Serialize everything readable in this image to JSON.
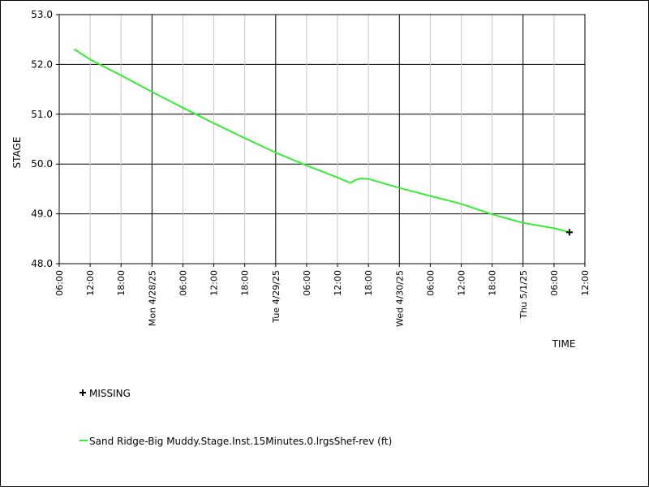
{
  "chart_data": {
    "type": "line",
    "ylabel": "STAGE",
    "xlabel": "TIME",
    "ylim": [
      48.0,
      53.0
    ],
    "y_ticks": [
      "48.0",
      "49.0",
      "50.0",
      "51.0",
      "52.0",
      "53.0"
    ],
    "x_range": [
      "2025-04-27T06:00",
      "2025-05-01T12:00"
    ],
    "x_tick_labels": [
      {
        "t": "2025-04-27T06:00",
        "label": "06:00"
      },
      {
        "t": "2025-04-27T12:00",
        "label": "12:00"
      },
      {
        "t": "2025-04-27T18:00",
        "label": "18:00"
      },
      {
        "t": "2025-04-28T00:00",
        "label": "Mon 4/28/25",
        "major": true
      },
      {
        "t": "2025-04-28T06:00",
        "label": "06:00"
      },
      {
        "t": "2025-04-28T12:00",
        "label": "12:00"
      },
      {
        "t": "2025-04-28T18:00",
        "label": "18:00"
      },
      {
        "t": "2025-04-29T00:00",
        "label": "Tue 4/29/25",
        "major": true
      },
      {
        "t": "2025-04-29T06:00",
        "label": "06:00"
      },
      {
        "t": "2025-04-29T12:00",
        "label": "12:00"
      },
      {
        "t": "2025-04-29T18:00",
        "label": "18:00"
      },
      {
        "t": "2025-04-30T00:00",
        "label": "Wed 4/30/25",
        "major": true
      },
      {
        "t": "2025-04-30T06:00",
        "label": "06:00"
      },
      {
        "t": "2025-04-30T12:00",
        "label": "12:00"
      },
      {
        "t": "2025-04-30T18:00",
        "label": "18:00"
      },
      {
        "t": "2025-05-01T00:00",
        "label": "Thu 5/1/25",
        "major": true
      },
      {
        "t": "2025-05-01T06:00",
        "label": "06:00"
      },
      {
        "t": "2025-05-01T12:00",
        "label": "12:00"
      }
    ],
    "grid": true,
    "series": [
      {
        "name": "Sand Ridge-Big Muddy.Stage.Inst.15Minutes.0.lrgsShef-rev (ft)",
        "color": "#33ee33",
        "points": [
          [
            "2025-04-27T09:00",
            52.3
          ],
          [
            "2025-04-27T12:00",
            52.1
          ],
          [
            "2025-04-27T18:00",
            51.78
          ],
          [
            "2025-04-28T00:00",
            51.45
          ],
          [
            "2025-04-28T06:00",
            51.13
          ],
          [
            "2025-04-28T12:00",
            50.82
          ],
          [
            "2025-04-28T18:00",
            50.52
          ],
          [
            "2025-04-29T00:00",
            50.23
          ],
          [
            "2025-04-29T06:00",
            49.97
          ],
          [
            "2025-04-29T12:00",
            49.73
          ],
          [
            "2025-04-29T14:30",
            49.62
          ],
          [
            "2025-04-29T15:30",
            49.68
          ],
          [
            "2025-04-29T16:30",
            49.71
          ],
          [
            "2025-04-29T18:00",
            49.7
          ],
          [
            "2025-04-30T00:00",
            49.52
          ],
          [
            "2025-04-30T06:00",
            49.36
          ],
          [
            "2025-04-30T12:00",
            49.2
          ],
          [
            "2025-04-30T18:00",
            48.99
          ],
          [
            "2025-05-01T00:00",
            48.82
          ],
          [
            "2025-05-01T06:00",
            48.71
          ],
          [
            "2025-05-01T08:45",
            48.64
          ]
        ]
      }
    ],
    "missing": {
      "label": "MISSING",
      "marker": "+",
      "color": "#000000",
      "points": [
        [
          "2025-05-01T09:00",
          48.63
        ]
      ]
    }
  }
}
